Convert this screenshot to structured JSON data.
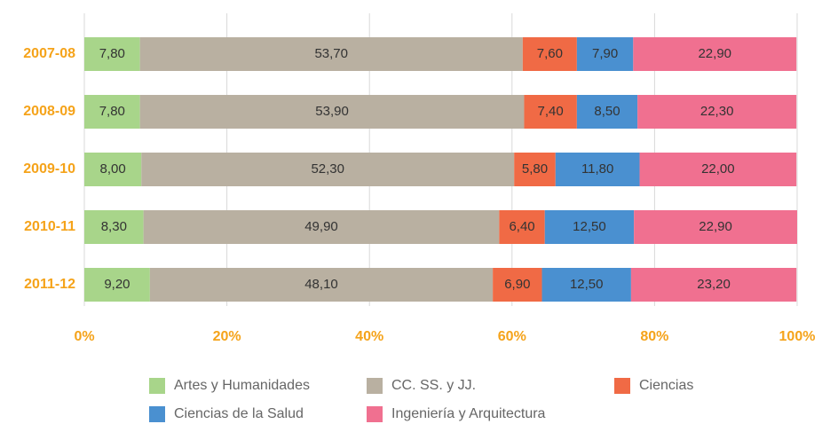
{
  "chart_data": {
    "type": "stacked-bar-horizontal",
    "categories": [
      "2007-08",
      "2008-09",
      "2009-10",
      "2010-11",
      "2011-12"
    ],
    "series": [
      {
        "name": "Artes y Humanidades",
        "color": "#a8d58a",
        "values": [
          7.8,
          7.8,
          8.0,
          8.3,
          9.2
        ],
        "value_labels": [
          "7,80",
          "7,80",
          "8,00",
          "8,30",
          "9,20"
        ]
      },
      {
        "name": "CC. SS. y JJ.",
        "color": "#b9b0a1",
        "values": [
          53.7,
          53.9,
          52.3,
          49.9,
          48.1
        ],
        "value_labels": [
          "53,70",
          "53,90",
          "52,30",
          "49,90",
          "48,10"
        ]
      },
      {
        "name": "Ciencias",
        "color": "#f06a45",
        "values": [
          7.6,
          7.4,
          5.8,
          6.4,
          6.9
        ],
        "value_labels": [
          "7,60",
          "7,40",
          "5,80",
          "6,40",
          "6,90"
        ]
      },
      {
        "name": "Ciencias de la Salud",
        "color": "#4a90d0",
        "values": [
          7.9,
          8.5,
          11.8,
          12.5,
          12.5
        ],
        "value_labels": [
          "7,90",
          "8,50",
          "11,80",
          "12,50",
          "12,50"
        ]
      },
      {
        "name": "Ingeniería y Arquitectura",
        "color": "#f07090",
        "values": [
          22.9,
          22.3,
          22.0,
          22.9,
          23.2
        ],
        "value_labels": [
          "22,90",
          "22,30",
          "22,00",
          "22,90",
          "23,20"
        ]
      }
    ],
    "xlim": [
      0,
      100
    ],
    "xticks": [
      {
        "value": 0,
        "label": "0%"
      },
      {
        "value": 20,
        "label": "20%"
      },
      {
        "value": 40,
        "label": "40%"
      },
      {
        "value": 60,
        "label": "60%"
      },
      {
        "value": 80,
        "label": "80%"
      },
      {
        "value": 100,
        "label": "100%"
      }
    ],
    "grid": true
  }
}
